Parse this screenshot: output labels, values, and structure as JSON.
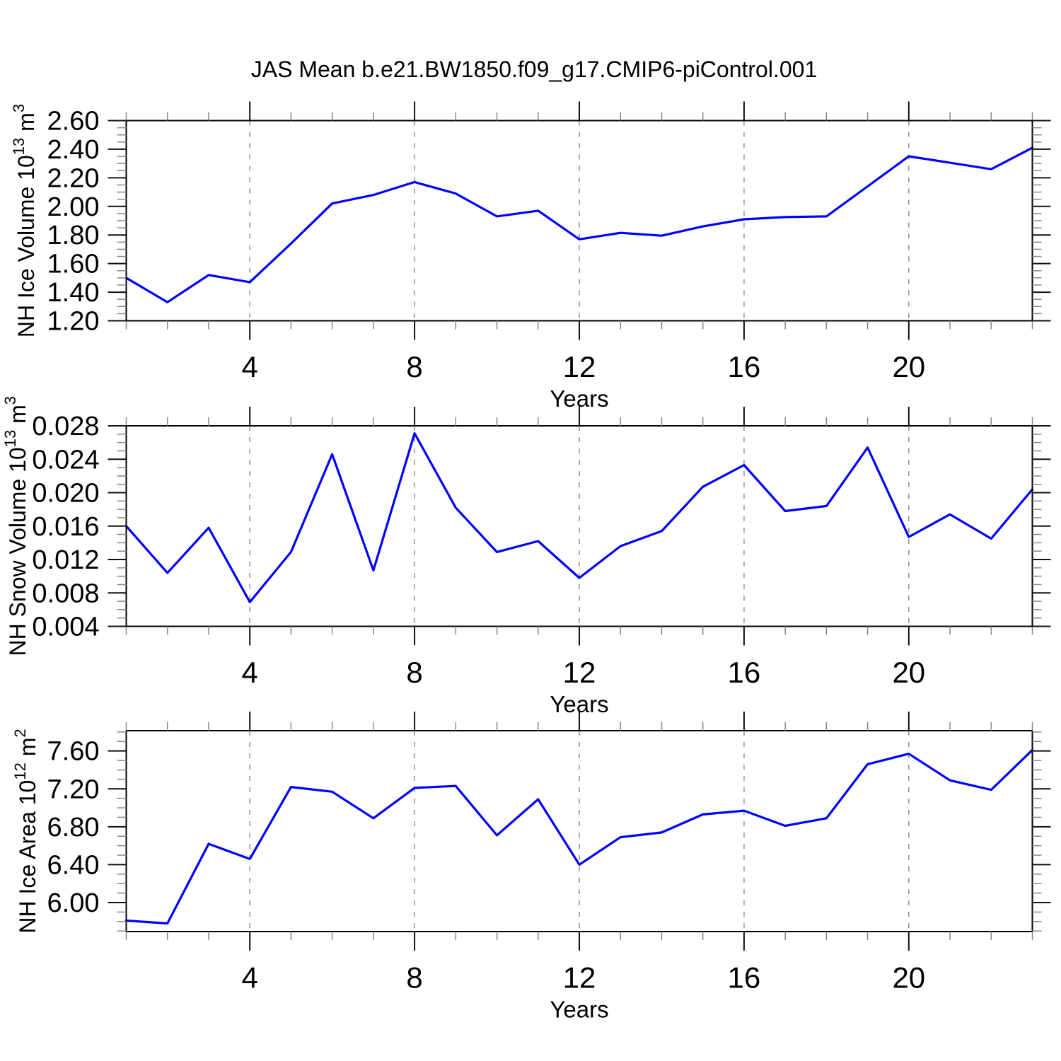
{
  "title": "JAS Mean b.e21.BW1850.f09_g17.CMIP6-piControl.001",
  "colors": {
    "line": "#0000ff",
    "axis": "#000000",
    "major_tick": "#111111",
    "minor_tick": "#888888",
    "grid": "#999999",
    "text": "#000000"
  },
  "x_axis": {
    "label": "Years",
    "min": 1,
    "max": 23,
    "major_ticks": [
      4,
      8,
      12,
      16,
      20
    ],
    "major_tick_labels": [
      "4",
      "8",
      "12",
      "16",
      "20"
    ],
    "minor_step": 1,
    "grid": "dashed-vertical-at-major-ticks"
  },
  "chart_data": [
    {
      "type": "line",
      "panel": "nh-ice-volume",
      "ylabel_text": "NH Ice Volume 10¹³ m³",
      "ylabel_parts": {
        "base": "NH Ice Volume 10",
        "exp": "13",
        "unit": " m",
        "unit_exp": "3"
      },
      "xlabel": "Years",
      "ylim": [
        1.2,
        2.6
      ],
      "y_major_ticks": [
        2.6,
        2.4,
        2.2,
        2.0,
        1.8,
        1.6,
        1.4,
        1.2
      ],
      "y_major_tick_labels": [
        "2.60",
        "2.40",
        "2.20",
        "2.00",
        "1.80",
        "1.60",
        "1.40",
        "1.20"
      ],
      "y_minor_step": 0.05,
      "x": [
        1,
        2,
        3,
        4,
        5,
        6,
        7,
        8,
        9,
        10,
        11,
        12,
        13,
        14,
        15,
        16,
        17,
        18,
        19,
        20,
        21,
        22,
        23
      ],
      "values": [
        1.5,
        1.33,
        1.52,
        1.47,
        1.74,
        2.02,
        2.08,
        2.17,
        2.09,
        1.93,
        1.97,
        1.77,
        1.815,
        1.795,
        1.86,
        1.91,
        1.925,
        1.93,
        2.14,
        2.35,
        2.305,
        2.26,
        2.41
      ]
    },
    {
      "type": "line",
      "panel": "nh-snow-volume",
      "ylabel_text": "NH Snow Volume 10¹³ m³",
      "ylabel_parts": {
        "base": "NH Snow Volume 10",
        "exp": "13",
        "unit": " m",
        "unit_exp": "3"
      },
      "xlabel": "Years",
      "ylim": [
        0.004,
        0.028
      ],
      "y_major_ticks": [
        0.028,
        0.024,
        0.02,
        0.016,
        0.012,
        0.008,
        0.004
      ],
      "y_major_tick_labels": [
        "0.028",
        "0.024",
        "0.020",
        "0.016",
        "0.012",
        "0.008",
        "0.004"
      ],
      "y_minor_step": 0.001,
      "x": [
        1,
        2,
        3,
        4,
        5,
        6,
        7,
        8,
        9,
        10,
        11,
        12,
        13,
        14,
        15,
        16,
        17,
        18,
        19,
        20,
        21,
        22,
        23
      ],
      "values": [
        0.016,
        0.0104,
        0.0158,
        0.0069,
        0.0129,
        0.0246,
        0.0107,
        0.0271,
        0.0182,
        0.0129,
        0.0142,
        0.0098,
        0.0136,
        0.0154,
        0.0207,
        0.0233,
        0.0178,
        0.0184,
        0.0254,
        0.0147,
        0.0174,
        0.0145,
        0.0204
      ]
    },
    {
      "type": "line",
      "panel": "nh-ice-area",
      "ylabel_text": "NH Ice Area 10¹² m²",
      "ylabel_parts": {
        "base": "NH Ice Area 10",
        "exp": "12",
        "unit": " m",
        "unit_exp": "2"
      },
      "xlabel": "Years",
      "ylim": [
        5.694,
        7.814
      ],
      "y_major_ticks": [
        7.6,
        7.2,
        6.8,
        6.4,
        6.0
      ],
      "y_major_tick_labels": [
        "7.60",
        "7.20",
        "6.80",
        "6.40",
        "6.00"
      ],
      "y_minor_step": 0.1,
      "x": [
        1,
        2,
        3,
        4,
        5,
        6,
        7,
        8,
        9,
        10,
        11,
        12,
        13,
        14,
        15,
        16,
        17,
        18,
        19,
        20,
        21,
        22,
        23
      ],
      "values": [
        5.81,
        5.78,
        6.62,
        6.46,
        7.22,
        7.17,
        6.89,
        7.21,
        7.23,
        6.71,
        7.09,
        6.4,
        6.69,
        6.74,
        6.93,
        6.97,
        6.81,
        6.89,
        7.46,
        7.57,
        7.29,
        7.19,
        7.61
      ]
    }
  ]
}
